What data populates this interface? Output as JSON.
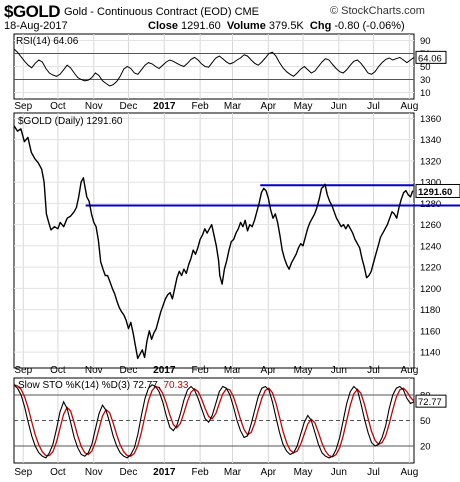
{
  "header": {
    "symbol": "$GOLD",
    "description": "Gold - Continuous Contract (EOD) CME",
    "brand": "© StockCharts.com",
    "date": "18-Aug-2017",
    "close_label": "Close",
    "close_value": "1291.60",
    "volume_label": "Volume",
    "volume_value": "379.5K",
    "chg_label": "Chg",
    "chg_value": "-0.80 (-0.06%)"
  },
  "chart_data": [
    {
      "type": "line",
      "panel": "rsi",
      "title": "RSI(14) 64.06",
      "last_value": 64.06,
      "last_label": "64.06",
      "ylim": [
        0,
        100
      ],
      "yticks": [
        10,
        30,
        50,
        70,
        90
      ],
      "reference_lines": [
        30,
        70
      ],
      "values": [
        77,
        72,
        65,
        58,
        52,
        48,
        55,
        60,
        57,
        47,
        40,
        37,
        35,
        38,
        45,
        52,
        48,
        40,
        33,
        30,
        28,
        29,
        33,
        40,
        36,
        28,
        24,
        20,
        22,
        27,
        35,
        46,
        50,
        47,
        40,
        38,
        45,
        52,
        56,
        54,
        50,
        47,
        52,
        57,
        60,
        58,
        55,
        52,
        50,
        55,
        61,
        64,
        60,
        54,
        50,
        49,
        56,
        63,
        66,
        62,
        57,
        54,
        56,
        60,
        63,
        68,
        66,
        60,
        55,
        52,
        57,
        63,
        70,
        72,
        66,
        56,
        48,
        42,
        38,
        35,
        40,
        46,
        50,
        45,
        40,
        43,
        50,
        57,
        62,
        60,
        53,
        47,
        42,
        40,
        45,
        52,
        58,
        60,
        55,
        48,
        40,
        38,
        42,
        50,
        56,
        61,
        63,
        60,
        62,
        64,
        60,
        56,
        60,
        64
      ]
    },
    {
      "type": "line",
      "panel": "price",
      "title": "$GOLD (Daily) 1291.60",
      "last_value": 1291.6,
      "last_label": "1291.60",
      "ylim": [
        1125,
        1365
      ],
      "yticks": [
        1140,
        1160,
        1180,
        1200,
        1220,
        1240,
        1260,
        1280,
        1300,
        1320,
        1340,
        1360
      ],
      "x_labels": [
        "Sep",
        "Oct",
        "Nov",
        "Dec",
        "2017",
        "Feb",
        "Mar",
        "Apr",
        "May",
        "Jun",
        "Jul",
        "Aug"
      ],
      "x_label_days": [
        0,
        30,
        61,
        91,
        122,
        153,
        181,
        212,
        242,
        273,
        303,
        334
      ],
      "horizontal_lines": [
        1297,
        1278
      ],
      "points": [
        [
          0,
          1353
        ],
        [
          3,
          1348
        ],
        [
          6,
          1350
        ],
        [
          9,
          1338
        ],
        [
          12,
          1342
        ],
        [
          15,
          1328
        ],
        [
          18,
          1322
        ],
        [
          21,
          1318
        ],
        [
          24,
          1312
        ],
        [
          26,
          1300
        ],
        [
          28,
          1270
        ],
        [
          30,
          1262
        ],
        [
          32,
          1255
        ],
        [
          35,
          1258
        ],
        [
          38,
          1256
        ],
        [
          40,
          1262
        ],
        [
          43,
          1258
        ],
        [
          46,
          1266
        ],
        [
          49,
          1268
        ],
        [
          52,
          1272
        ],
        [
          54,
          1276
        ],
        [
          56,
          1286
        ],
        [
          58,
          1300
        ],
        [
          60,
          1304
        ],
        [
          61,
          1298
        ],
        [
          63,
          1286
        ],
        [
          65,
          1282
        ],
        [
          67,
          1270
        ],
        [
          69,
          1262
        ],
        [
          71,
          1258
        ],
        [
          73,
          1245
        ],
        [
          75,
          1225
        ],
        [
          77,
          1218
        ],
        [
          79,
          1212
        ],
        [
          81,
          1212
        ],
        [
          83,
          1206
        ],
        [
          85,
          1200
        ],
        [
          87,
          1195
        ],
        [
          89,
          1188
        ],
        [
          91,
          1182
        ],
        [
          93,
          1178
        ],
        [
          95,
          1175
        ],
        [
          97,
          1170
        ],
        [
          99,
          1162
        ],
        [
          101,
          1168
        ],
        [
          103,
          1158
        ],
        [
          105,
          1146
        ],
        [
          107,
          1134
        ],
        [
          109,
          1138
        ],
        [
          111,
          1142
        ],
        [
          113,
          1135
        ],
        [
          115,
          1150
        ],
        [
          117,
          1160
        ],
        [
          119,
          1152
        ],
        [
          121,
          1158
        ],
        [
          123,
          1162
        ],
        [
          125,
          1170
        ],
        [
          127,
          1178
        ],
        [
          129,
          1184
        ],
        [
          131,
          1190
        ],
        [
          133,
          1194
        ],
        [
          135,
          1196
        ],
        [
          137,
          1190
        ],
        [
          139,
          1200
        ],
        [
          141,
          1210
        ],
        [
          143,
          1216
        ],
        [
          145,
          1212
        ],
        [
          147,
          1218
        ],
        [
          149,
          1214
        ],
        [
          151,
          1222
        ],
        [
          153,
          1228
        ],
        [
          155,
          1236
        ],
        [
          157,
          1232
        ],
        [
          159,
          1238
        ],
        [
          161,
          1246
        ],
        [
          163,
          1250
        ],
        [
          165,
          1256
        ],
        [
          167,
          1252
        ],
        [
          169,
          1256
        ],
        [
          171,
          1260
        ],
        [
          173,
          1250
        ],
        [
          175,
          1240
        ],
        [
          177,
          1226
        ],
        [
          178,
          1212
        ],
        [
          180,
          1204
        ],
        [
          182,
          1218
        ],
        [
          184,
          1226
        ],
        [
          186,
          1236
        ],
        [
          188,
          1244
        ],
        [
          190,
          1246
        ],
        [
          192,
          1252
        ],
        [
          194,
          1256
        ],
        [
          196,
          1262
        ],
        [
          198,
          1258
        ],
        [
          200,
          1264
        ],
        [
          202,
          1254
        ],
        [
          204,
          1260
        ],
        [
          206,
          1258
        ],
        [
          208,
          1264
        ],
        [
          210,
          1272
        ],
        [
          212,
          1280
        ],
        [
          214,
          1290
        ],
        [
          216,
          1294
        ],
        [
          218,
          1292
        ],
        [
          220,
          1285
        ],
        [
          222,
          1274
        ],
        [
          224,
          1266
        ],
        [
          226,
          1270
        ],
        [
          228,
          1262
        ],
        [
          230,
          1250
        ],
        [
          232,
          1236
        ],
        [
          234,
          1228
        ],
        [
          236,
          1222
        ],
        [
          238,
          1218
        ],
        [
          240,
          1224
        ],
        [
          242,
          1228
        ],
        [
          244,
          1232
        ],
        [
          246,
          1238
        ],
        [
          248,
          1242
        ],
        [
          250,
          1240
        ],
        [
          252,
          1248
        ],
        [
          254,
          1256
        ],
        [
          256,
          1262
        ],
        [
          258,
          1266
        ],
        [
          260,
          1270
        ],
        [
          262,
          1276
        ],
        [
          264,
          1284
        ],
        [
          266,
          1294
        ],
        [
          268,
          1296
        ],
        [
          269,
          1298
        ],
        [
          271,
          1288
        ],
        [
          273,
          1282
        ],
        [
          275,
          1278
        ],
        [
          277,
          1272
        ],
        [
          279,
          1266
        ],
        [
          281,
          1262
        ],
        [
          283,
          1258
        ],
        [
          285,
          1260
        ],
        [
          287,
          1256
        ],
        [
          289,
          1260
        ],
        [
          291,
          1256
        ],
        [
          293,
          1252
        ],
        [
          295,
          1246
        ],
        [
          297,
          1242
        ],
        [
          299,
          1238
        ],
        [
          301,
          1228
        ],
        [
          303,
          1220
        ],
        [
          305,
          1210
        ],
        [
          307,
          1212
        ],
        [
          309,
          1216
        ],
        [
          311,
          1224
        ],
        [
          313,
          1232
        ],
        [
          315,
          1240
        ],
        [
          317,
          1248
        ],
        [
          319,
          1252
        ],
        [
          321,
          1256
        ],
        [
          323,
          1260
        ],
        [
          325,
          1266
        ],
        [
          327,
          1272
        ],
        [
          329,
          1270
        ],
        [
          331,
          1266
        ],
        [
          333,
          1276
        ],
        [
          335,
          1284
        ],
        [
          337,
          1290
        ],
        [
          339,
          1292
        ],
        [
          341,
          1288
        ],
        [
          343,
          1286
        ],
        [
          345,
          1292
        ]
      ]
    },
    {
      "type": "line",
      "panel": "stochastic",
      "title": "Slow STO %K(14) %D(3) 72.77, 70.33",
      "title_main": "Slow STO %K(14) %D(3) 72.77,",
      "title_d": "70.33",
      "last_value": 72.77,
      "last_label": "72.77",
      "ylim": [
        0,
        100
      ],
      "yticks": [
        20,
        50,
        80
      ],
      "reference_lines": [
        20,
        50,
        80
      ],
      "k_values": [
        92,
        88,
        80,
        66,
        48,
        32,
        20,
        12,
        8,
        6,
        12,
        22,
        40,
        60,
        72,
        64,
        48,
        30,
        18,
        10,
        8,
        12,
        22,
        40,
        58,
        68,
        62,
        48,
        32,
        20,
        12,
        8,
        6,
        10,
        18,
        34,
        56,
        76,
        88,
        92,
        90,
        84,
        72,
        56,
        42,
        38,
        44,
        58,
        74,
        86,
        90,
        86,
        76,
        64,
        52,
        48,
        56,
        70,
        84,
        90,
        88,
        80,
        66,
        50,
        38,
        30,
        32,
        46,
        62,
        78,
        88,
        90,
        86,
        72,
        54,
        36,
        22,
        14,
        10,
        12,
        20,
        34,
        48,
        56,
        50,
        36,
        22,
        12,
        8,
        6,
        8,
        16,
        30,
        50,
        70,
        84,
        90,
        86,
        70,
        52,
        36,
        24,
        20,
        22,
        30,
        44,
        64,
        80,
        88,
        90,
        86,
        76,
        70,
        72
      ]
    }
  ]
}
